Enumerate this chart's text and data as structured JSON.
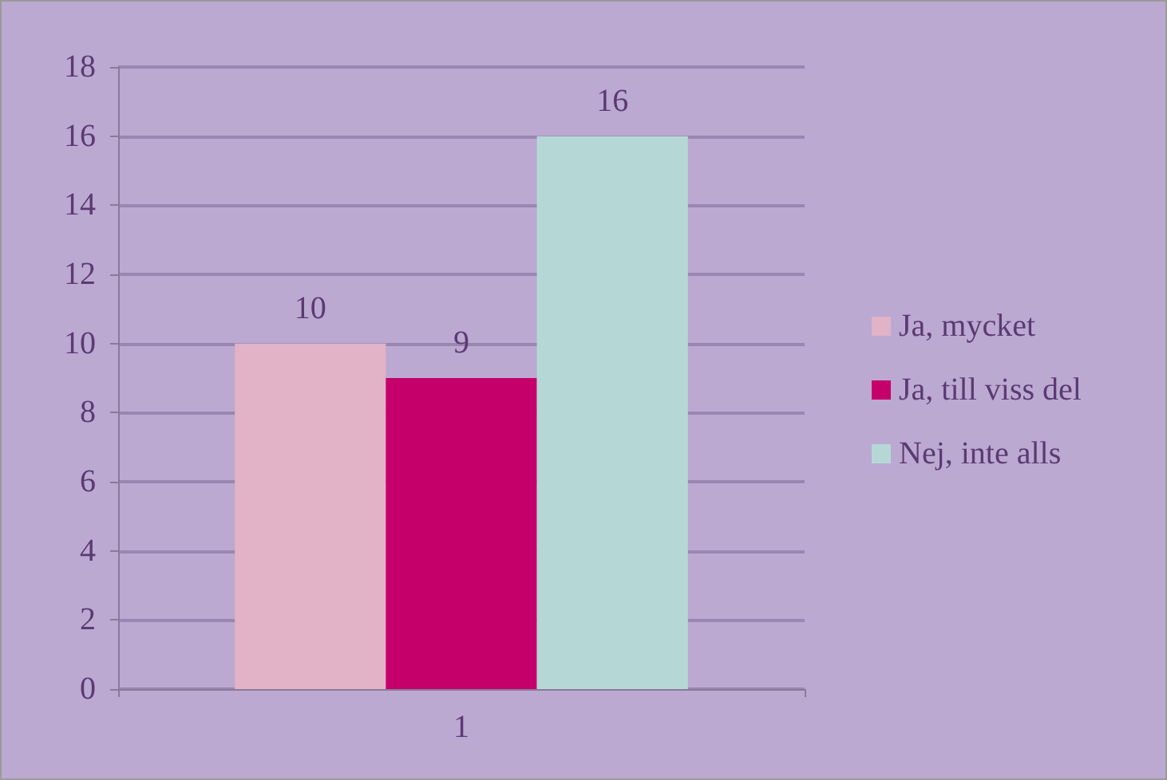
{
  "chart_data": {
    "type": "bar",
    "categories": [
      "1"
    ],
    "series": [
      {
        "name": "Ja, mycket",
        "color": "#e2b2c6",
        "values": [
          10
        ]
      },
      {
        "name": "Ja, till viss del",
        "color": "#c6006a",
        "values": [
          9
        ]
      },
      {
        "name": "Nej, inte alls",
        "color": "#b5d8d6",
        "values": [
          16
        ]
      }
    ],
    "ylim": [
      0,
      18
    ],
    "yticks": [
      0,
      2,
      4,
      6,
      8,
      10,
      12,
      14,
      16,
      18
    ],
    "grid": "y",
    "legend": "right",
    "data_labels": true
  }
}
